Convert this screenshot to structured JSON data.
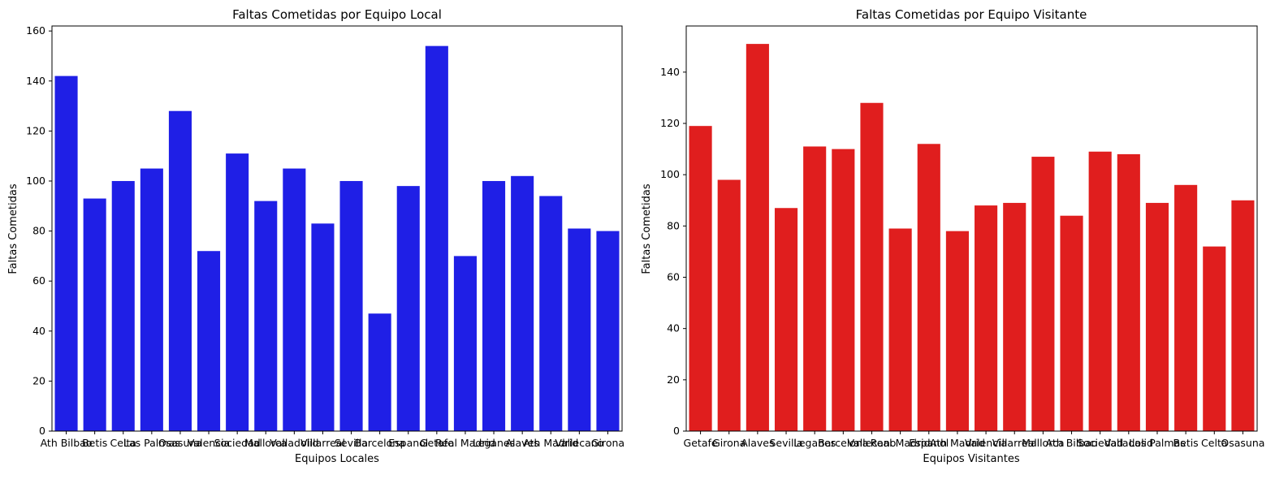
{
  "chart_data": [
    {
      "type": "bar",
      "title": "Faltas Cometidas por Equipo Local",
      "xlabel": "Equipos Locales",
      "ylabel": "Faltas Cometidas",
      "color": "#1f1fe6",
      "ylim": [
        0,
        162
      ],
      "yticks": [
        0,
        20,
        40,
        60,
        80,
        100,
        120,
        140,
        160
      ],
      "categories": [
        "Ath Bilbao",
        "Betis",
        "Celta",
        "Las Palmas",
        "Osasuna",
        "Valencia",
        "Sociedad",
        "Mallorca",
        "Valladolid",
        "Villarreal",
        "Sevilla",
        "Barcelona",
        "Espanol",
        "Getafe",
        "Real Madrid",
        "Leganes",
        "Alaves",
        "Ath Madrid",
        "Vallecano",
        "Girona"
      ],
      "values": [
        142,
        93,
        100,
        105,
        128,
        72,
        111,
        92,
        105,
        83,
        100,
        47,
        98,
        154,
        70,
        100,
        102,
        94,
        81,
        80
      ]
    },
    {
      "type": "bar",
      "title": "Faltas Cometidas por Equipo Visitante",
      "xlabel": "Equipos Visitantes",
      "ylabel": "Faltas Cometidas",
      "color": "#e01e1e",
      "ylim": [
        0,
        158
      ],
      "yticks": [
        0,
        20,
        40,
        60,
        80,
        100,
        120,
        140
      ],
      "categories": [
        "Getafe",
        "Girona",
        "Alaves",
        "Sevilla",
        "Leganes",
        "Barcelona",
        "Vallecano",
        "Real Madrid",
        "Espanol",
        "Ath Madrid",
        "Valencia",
        "Villarreal",
        "Mallorca",
        "Ath Bilbao",
        "Sociedad",
        "Valladolid",
        "Las Palmas",
        "Betis",
        "Celta",
        "Osasuna"
      ],
      "values": [
        119,
        98,
        151,
        87,
        111,
        110,
        128,
        79,
        112,
        78,
        88,
        89,
        107,
        84,
        109,
        108,
        89,
        96,
        72,
        90
      ]
    }
  ]
}
